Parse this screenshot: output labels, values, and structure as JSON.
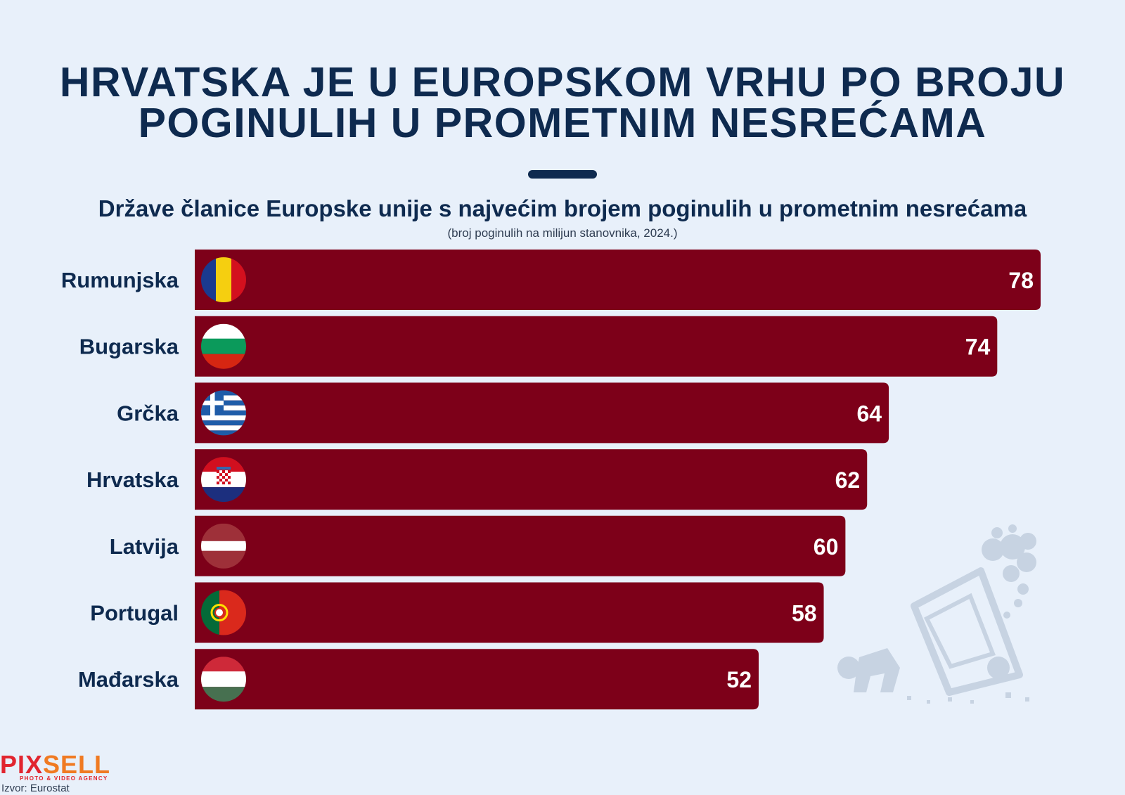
{
  "title_lines": [
    "HRVATSKA JE U EUROPSKOM VRHU PO BROJU",
    "POGINULIH U PROMETNIM NESREĆAMA"
  ],
  "subtitle": "Države članice Europske unije s najvećim brojem poginulih u prometnim nesrećama",
  "note": "(broj poginulih na milijun stanovnika, 2024.)",
  "source": "Izvor: Eurostat",
  "logo": {
    "part1": "PIX",
    "part2": "SELL",
    "tagline": "PHOTO & VIDEO AGENCY"
  },
  "colors": {
    "bar": "#7d0019",
    "background": "#e8f0fa",
    "text": "#0e2a4f",
    "value_text": "#ffffff"
  },
  "chart_data": {
    "type": "bar",
    "orientation": "horizontal",
    "title": "Države članice Europske unije s najvećim brojem poginulih u prometnim nesrećama",
    "subtitle": "(broj poginulih na milijun stanovnika, 2024.)",
    "categories": [
      "Rumunjska",
      "Bugarska",
      "Grčka",
      "Hrvatska",
      "Latvija",
      "Portugal",
      "Mađarska"
    ],
    "values": [
      78,
      74,
      64,
      62,
      60,
      58,
      52
    ],
    "flags": [
      "romania-flag-icon",
      "bulgaria-flag-icon",
      "greece-flag-icon",
      "croatia-flag-icon",
      "latvia-flag-icon",
      "portugal-flag-icon",
      "hungary-flag-icon"
    ],
    "xlim": [
      0,
      78
    ],
    "data_labels": true,
    "grid": false,
    "legend": "none"
  }
}
